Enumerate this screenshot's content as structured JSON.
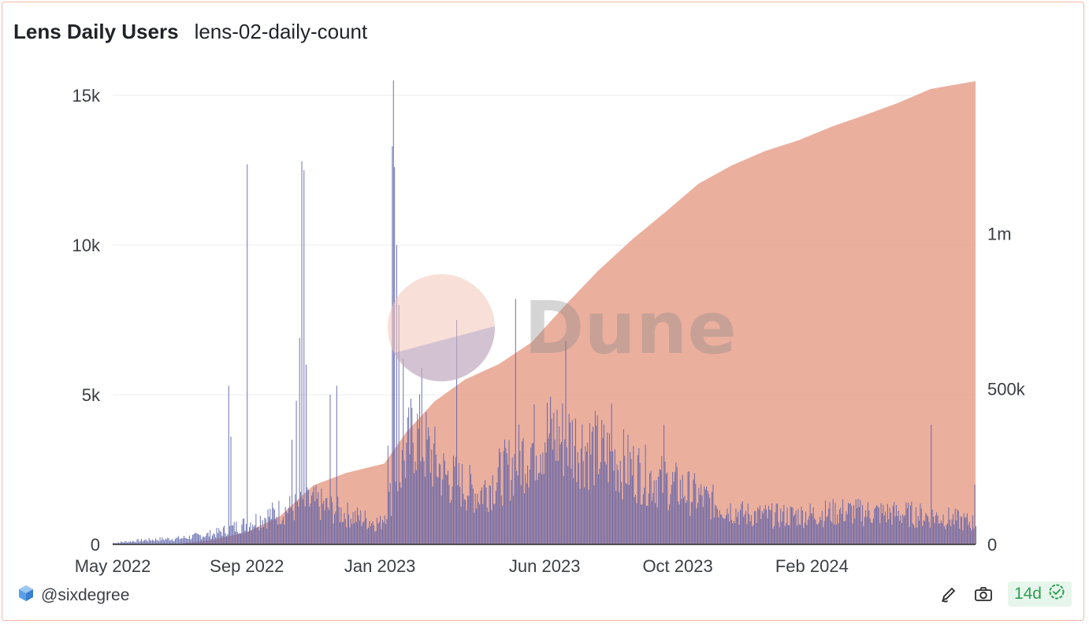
{
  "header": {
    "title": "Lens Daily Users",
    "query_name": "lens-02-daily-count"
  },
  "footer": {
    "author": "@sixdegree",
    "refresh_badge": "14d"
  },
  "watermark": "Dune",
  "colors": {
    "bars": "#5a5fa8",
    "area": "#e8a18d",
    "grid": "#ececec",
    "badge": "#2f9e55"
  },
  "icons": {
    "logo": "dune-logo-icon",
    "edit": "edit-icon",
    "screenshot": "camera-icon",
    "status": "check-circle-icon"
  },
  "chart_data": {
    "type": "bar",
    "title": "",
    "x_start": "2022-05-01",
    "x_end": "2024-06-30",
    "x_ticks": [
      "May 2022",
      "Sep 2022",
      "Jan 2023",
      "Jun 2023",
      "Oct 2023",
      "Feb 2024"
    ],
    "y_left": {
      "ticks": [
        "0",
        "5k",
        "10k",
        "15k"
      ],
      "values": [
        0,
        5000,
        10000,
        15000
      ],
      "range": [
        0,
        15000
      ]
    },
    "y_right": {
      "ticks": [
        "0",
        "500k",
        "1m"
      ],
      "values": [
        0,
        500000,
        1000000
      ],
      "range": [
        0,
        1490000
      ]
    },
    "grid": true,
    "series": [
      {
        "name": "",
        "type": "bar",
        "axis": "left",
        "anchors": [
          [
            "2022-05-01",
            50
          ],
          [
            "2022-06-01",
            150
          ],
          [
            "2022-07-01",
            200
          ],
          [
            "2022-08-01",
            350
          ],
          [
            "2022-09-01",
            700
          ],
          [
            "2022-10-01",
            1100
          ],
          [
            "2022-11-01",
            1400
          ],
          [
            "2022-12-01",
            1000
          ],
          [
            "2023-01-01",
            700
          ],
          [
            "2023-01-20",
            2500
          ],
          [
            "2023-02-01",
            3800
          ],
          [
            "2023-03-01",
            2300
          ],
          [
            "2023-04-01",
            1700
          ],
          [
            "2023-05-01",
            2600
          ],
          [
            "2023-06-01",
            3700
          ],
          [
            "2023-07-01",
            3400
          ],
          [
            "2023-08-01",
            2900
          ],
          [
            "2023-09-01",
            2300
          ],
          [
            "2023-10-01",
            1900
          ],
          [
            "2023-11-01",
            1400
          ],
          [
            "2023-12-01",
            1000
          ],
          [
            "2024-01-01",
            950
          ],
          [
            "2024-02-01",
            1000
          ],
          [
            "2024-03-01",
            1100
          ],
          [
            "2024-04-01",
            1050
          ],
          [
            "2024-05-01",
            1000
          ],
          [
            "2024-06-01",
            900
          ],
          [
            "2024-06-30",
            700
          ]
        ],
        "spikes": [
          [
            "2022-08-15",
            5300
          ],
          [
            "2022-08-17",
            3600
          ],
          [
            "2022-09-01",
            12700
          ],
          [
            "2022-10-12",
            3500
          ],
          [
            "2022-10-16",
            4800
          ],
          [
            "2022-10-19",
            6900
          ],
          [
            "2022-10-21",
            12800
          ],
          [
            "2022-10-23",
            12500
          ],
          [
            "2022-10-25",
            6000
          ],
          [
            "2022-11-16",
            5000
          ],
          [
            "2022-11-22",
            5300
          ],
          [
            "2023-01-08",
            3300
          ],
          [
            "2023-01-12",
            13300
          ],
          [
            "2023-01-13",
            15500
          ],
          [
            "2023-01-14",
            12600
          ],
          [
            "2023-01-16",
            10000
          ],
          [
            "2023-01-18",
            8000
          ],
          [
            "2023-01-22",
            6200
          ],
          [
            "2023-02-08",
            5900
          ],
          [
            "2023-03-12",
            7500
          ],
          [
            "2023-05-05",
            8200
          ],
          [
            "2023-06-20",
            6800
          ],
          [
            "2023-08-01",
            4700
          ],
          [
            "2023-09-18",
            4000
          ],
          [
            "2024-05-20",
            4000
          ],
          [
            "2024-06-29",
            2000
          ]
        ]
      },
      {
        "name": "",
        "type": "area",
        "axis": "right",
        "points": [
          [
            "2022-05-01",
            0
          ],
          [
            "2022-07-01",
            2000
          ],
          [
            "2022-08-01",
            15000
          ],
          [
            "2022-09-01",
            40000
          ],
          [
            "2022-10-01",
            90000
          ],
          [
            "2022-11-01",
            190000
          ],
          [
            "2022-12-01",
            230000
          ],
          [
            "2023-01-05",
            260000
          ],
          [
            "2023-01-25",
            360000
          ],
          [
            "2023-02-20",
            460000
          ],
          [
            "2023-03-20",
            530000
          ],
          [
            "2023-04-20",
            580000
          ],
          [
            "2023-05-20",
            650000
          ],
          [
            "2023-06-20",
            770000
          ],
          [
            "2023-07-20",
            880000
          ],
          [
            "2023-08-20",
            980000
          ],
          [
            "2023-09-20",
            1070000
          ],
          [
            "2023-10-20",
            1160000
          ],
          [
            "2023-11-20",
            1220000
          ],
          [
            "2023-12-20",
            1265000
          ],
          [
            "2024-01-20",
            1300000
          ],
          [
            "2024-02-20",
            1345000
          ],
          [
            "2024-03-20",
            1380000
          ],
          [
            "2024-04-20",
            1420000
          ],
          [
            "2024-05-20",
            1465000
          ],
          [
            "2024-06-30",
            1490000
          ]
        ]
      }
    ]
  }
}
